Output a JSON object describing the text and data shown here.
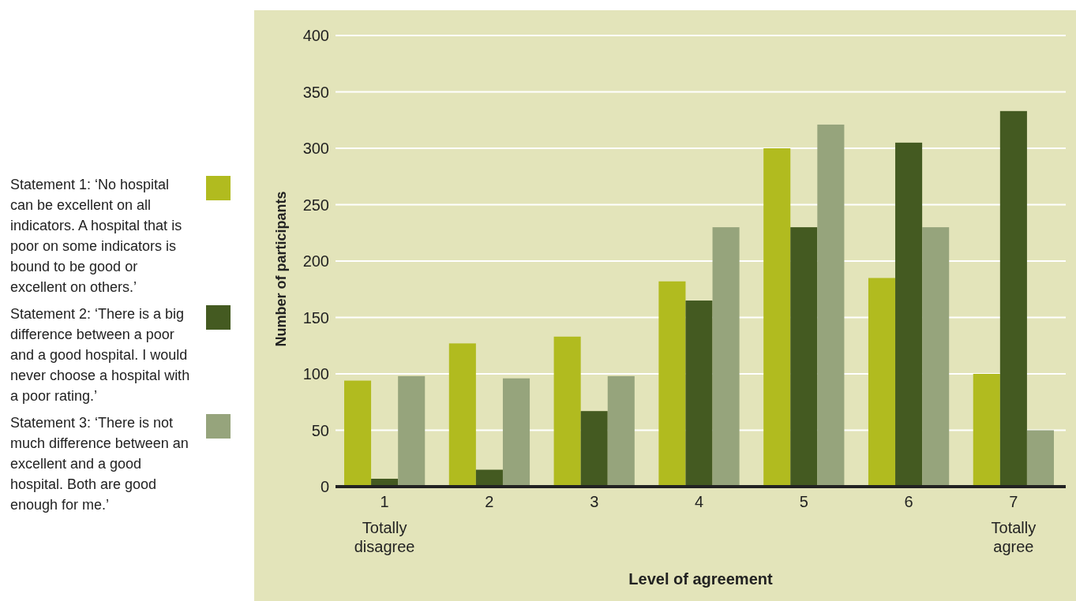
{
  "chart_data": {
    "type": "bar",
    "xlabel": "Level of agreement",
    "ylabel": "Number of participants",
    "categories": [
      "1",
      "2",
      "3",
      "4",
      "5",
      "6",
      "7"
    ],
    "series": [
      {
        "name": "Statement 1: ‘No hospital can be excellent on all indicators. A hospital that is poor on some indicators is bound to be good or excellent on others.’",
        "color": "#b1bb1f",
        "values": [
          94,
          127,
          133,
          182,
          300,
          185,
          100
        ]
      },
      {
        "name": "Statement 2: ‘There is a big difference between a poor and a good hospital. I would never choose a hospital with a poor rating.’",
        "color": "#445a21",
        "values": [
          7,
          15,
          67,
          165,
          230,
          305,
          333
        ]
      },
      {
        "name": "Statement 3: ‘There is not much difference between an excellent and a good hospital. Both are good enough for me.’",
        "color": "#96a47c",
        "values": [
          98,
          96,
          98,
          230,
          321,
          230,
          50
        ]
      }
    ],
    "annotations": [
      "Totally disagree",
      "Totally agree"
    ],
    "ylim": [
      0,
      400
    ],
    "yticks": [
      0,
      50,
      100,
      150,
      200,
      250,
      300,
      350,
      400
    ],
    "grid": "y",
    "legend": "left"
  }
}
